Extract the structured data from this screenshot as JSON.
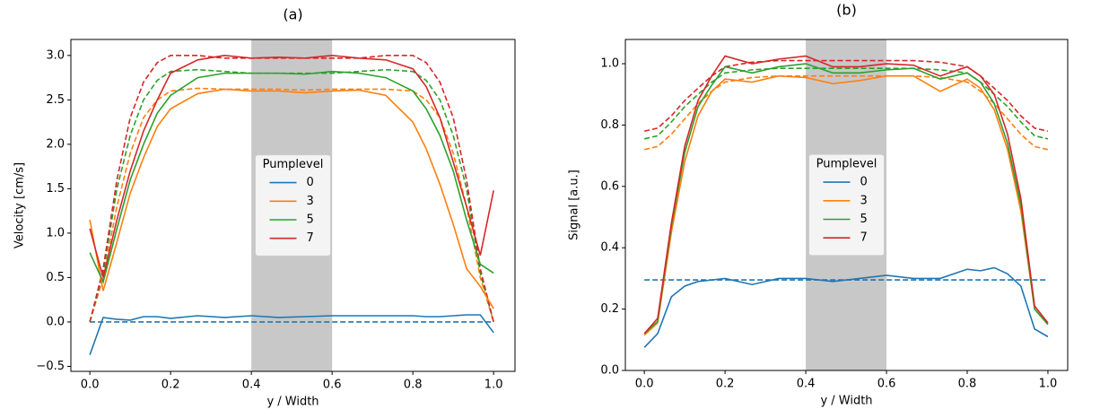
{
  "chart_data": [
    {
      "type": "line",
      "title": "(a)",
      "xlabel": "y / Width",
      "ylabel": "Velocity [cm/s]",
      "legend_title": "Pumplevel",
      "legend_loc": "center",
      "xlim": [
        -0.047,
        1.053
      ],
      "ylim": [
        -0.556,
        3.18
      ],
      "xticks": [
        {
          "value": 0,
          "label": "0.0"
        },
        {
          "value": 0.2,
          "label": "0.2"
        },
        {
          "value": 0.4,
          "label": "0.4"
        },
        {
          "value": 0.6,
          "label": "0.6"
        },
        {
          "value": 0.8,
          "label": "0.8"
        },
        {
          "value": 1,
          "label": "1.0"
        }
      ],
      "yticks": [
        {
          "value": -0.5,
          "label": "−0.5"
        },
        {
          "value": 0,
          "label": "0.0"
        },
        {
          "value": 0.5,
          "label": "0.5"
        },
        {
          "value": 1,
          "label": "1.0"
        },
        {
          "value": 1.5,
          "label": "1.5"
        },
        {
          "value": 2,
          "label": "2.0"
        },
        {
          "value": 2.5,
          "label": "2.5"
        },
        {
          "value": 3,
          "label": "3.0"
        }
      ],
      "span": [
        0.4,
        0.6
      ],
      "span_color": "#c8c8c8",
      "x": [
        0,
        0.033,
        0.067,
        0.1,
        0.133,
        0.167,
        0.2,
        0.267,
        0.333,
        0.4,
        0.467,
        0.533,
        0.6,
        0.667,
        0.733,
        0.8,
        0.833,
        0.867,
        0.9,
        0.933,
        0.967,
        1.0
      ],
      "series": [
        {
          "name": "0",
          "color": "#1f77b4",
          "values": [
            -0.37,
            0.05,
            0.03,
            0.02,
            0.06,
            0.06,
            0.04,
            0.07,
            0.05,
            0.07,
            0.05,
            0.06,
            0.07,
            0.07,
            0.07,
            0.07,
            0.06,
            0.06,
            0.07,
            0.08,
            0.08,
            -0.12
          ],
          "reference_values": [
            0,
            0,
            0,
            0,
            0,
            0,
            0,
            0,
            0,
            0,
            0,
            0,
            0,
            0,
            0,
            0,
            0,
            0,
            0,
            0,
            0,
            0
          ]
        },
        {
          "name": "3",
          "color": "#ff7f0e",
          "values": [
            1.15,
            0.35,
            0.9,
            1.45,
            1.85,
            2.2,
            2.4,
            2.57,
            2.62,
            2.6,
            2.6,
            2.58,
            2.6,
            2.61,
            2.55,
            2.25,
            1.95,
            1.55,
            1.1,
            0.6,
            0.4,
            0.15
          ],
          "reference_values": [
            0,
            0.5,
            1.3,
            1.9,
            2.3,
            2.5,
            2.6,
            2.63,
            2.62,
            2.62,
            2.62,
            2.61,
            2.62,
            2.62,
            2.62,
            2.6,
            2.5,
            2.3,
            1.9,
            1.3,
            0.5,
            0
          ]
        },
        {
          "name": "5",
          "color": "#2ca02c",
          "values": [
            0.78,
            0.45,
            1.05,
            1.6,
            2.0,
            2.35,
            2.55,
            2.75,
            2.8,
            2.8,
            2.8,
            2.79,
            2.82,
            2.8,
            2.75,
            2.6,
            2.4,
            2.1,
            1.7,
            1.15,
            0.65,
            0.55
          ],
          "reference_values": [
            0,
            0.55,
            1.5,
            2.1,
            2.5,
            2.72,
            2.82,
            2.84,
            2.82,
            2.8,
            2.8,
            2.8,
            2.8,
            2.82,
            2.84,
            2.82,
            2.72,
            2.5,
            2.1,
            1.5,
            0.55,
            0
          ]
        },
        {
          "name": "7",
          "color": "#d62728",
          "values": [
            1.05,
            0.5,
            1.15,
            1.7,
            2.15,
            2.5,
            2.8,
            2.95,
            3.0,
            2.97,
            2.98,
            2.97,
            3.0,
            2.97,
            2.95,
            2.85,
            2.65,
            2.3,
            1.8,
            1.3,
            0.75,
            1.48
          ],
          "reference_values": [
            0,
            0.6,
            1.6,
            2.3,
            2.7,
            2.92,
            3.0,
            3.0,
            2.97,
            2.97,
            2.97,
            2.97,
            2.97,
            2.97,
            3.0,
            3.0,
            2.92,
            2.7,
            2.3,
            1.6,
            0.6,
            0
          ]
        }
      ]
    },
    {
      "type": "line",
      "title": "(b)",
      "xlabel": "y / Width",
      "ylabel": "Signal [a.u.]",
      "legend_title": "Pumplevel",
      "legend_loc": "center",
      "xlim": [
        -0.047,
        1.049
      ],
      "ylim": [
        0,
        1.079
      ],
      "xticks": [
        {
          "value": 0,
          "label": "0.0"
        },
        {
          "value": 0.2,
          "label": "0.2"
        },
        {
          "value": 0.4,
          "label": "0.4"
        },
        {
          "value": 0.6,
          "label": "0.6"
        },
        {
          "value": 0.8,
          "label": "0.8"
        },
        {
          "value": 1,
          "label": "1.0"
        }
      ],
      "yticks": [
        {
          "value": 0,
          "label": "0.0"
        },
        {
          "value": 0.2,
          "label": "0.2"
        },
        {
          "value": 0.4,
          "label": "0.4"
        },
        {
          "value": 0.6,
          "label": "0.6"
        },
        {
          "value": 0.8,
          "label": "0.8"
        },
        {
          "value": 1,
          "label": "1.0"
        }
      ],
      "span": [
        0.4,
        0.6
      ],
      "span_color": "#c8c8c8",
      "x": [
        0,
        0.033,
        0.067,
        0.1,
        0.133,
        0.167,
        0.2,
        0.267,
        0.333,
        0.4,
        0.467,
        0.533,
        0.6,
        0.667,
        0.733,
        0.8,
        0.833,
        0.867,
        0.9,
        0.933,
        0.967,
        1.0
      ],
      "series": [
        {
          "name": "0",
          "color": "#1f77b4",
          "values": [
            0.075,
            0.12,
            0.24,
            0.275,
            0.29,
            0.295,
            0.3,
            0.28,
            0.3,
            0.3,
            0.29,
            0.3,
            0.31,
            0.3,
            0.3,
            0.33,
            0.325,
            0.335,
            0.315,
            0.275,
            0.135,
            0.11
          ],
          "reference_values": [
            0.295,
            0.295,
            0.295,
            0.295,
            0.295,
            0.295,
            0.295,
            0.295,
            0.295,
            0.295,
            0.295,
            0.295,
            0.295,
            0.295,
            0.295,
            0.295,
            0.295,
            0.295,
            0.295,
            0.295,
            0.295,
            0.295
          ]
        },
        {
          "name": "3",
          "color": "#ff7f0e",
          "values": [
            0.115,
            0.155,
            0.45,
            0.68,
            0.83,
            0.91,
            0.95,
            0.94,
            0.96,
            0.955,
            0.935,
            0.945,
            0.96,
            0.96,
            0.91,
            0.95,
            0.92,
            0.85,
            0.72,
            0.52,
            0.2,
            0.15
          ],
          "reference_values": [
            0.72,
            0.73,
            0.77,
            0.82,
            0.87,
            0.91,
            0.94,
            0.955,
            0.96,
            0.96,
            0.96,
            0.96,
            0.96,
            0.96,
            0.955,
            0.94,
            0.91,
            0.87,
            0.82,
            0.77,
            0.73,
            0.72
          ]
        },
        {
          "name": "5",
          "color": "#2ca02c",
          "values": [
            0.12,
            0.16,
            0.47,
            0.71,
            0.86,
            0.93,
            0.99,
            0.97,
            0.99,
            1.0,
            0.97,
            0.97,
            0.98,
            0.985,
            0.95,
            0.97,
            0.94,
            0.87,
            0.74,
            0.54,
            0.2,
            0.15
          ],
          "reference_values": [
            0.755,
            0.765,
            0.81,
            0.86,
            0.9,
            0.94,
            0.97,
            0.98,
            0.985,
            0.985,
            0.985,
            0.985,
            0.985,
            0.985,
            0.98,
            0.97,
            0.94,
            0.9,
            0.86,
            0.81,
            0.765,
            0.755
          ]
        },
        {
          "name": "7",
          "color": "#d62728",
          "values": [
            0.12,
            0.17,
            0.48,
            0.73,
            0.88,
            0.96,
            1.025,
            1.0,
            1.015,
            1.025,
            0.99,
            0.99,
            1.0,
            0.995,
            0.96,
            0.99,
            0.96,
            0.9,
            0.77,
            0.56,
            0.21,
            0.155
          ],
          "reference_values": [
            0.78,
            0.79,
            0.83,
            0.88,
            0.92,
            0.96,
            0.99,
            1.005,
            1.01,
            1.01,
            1.01,
            1.01,
            1.01,
            1.01,
            1.005,
            0.99,
            0.96,
            0.92,
            0.88,
            0.83,
            0.79,
            0.78
          ]
        }
      ]
    }
  ]
}
